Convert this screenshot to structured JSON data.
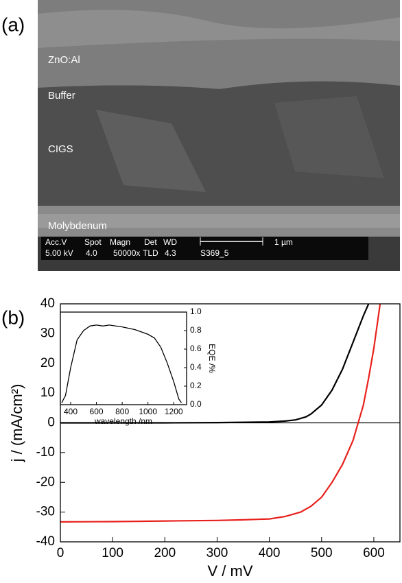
{
  "panel_a": {
    "label": "(a)",
    "layers": [
      "ZnO:Al",
      "Buffer",
      "CIGS",
      "Molybdenum"
    ],
    "info_header": [
      "Acc.V",
      "Spot",
      "Magn",
      "Det",
      "WD"
    ],
    "scale_bar": "1 µm",
    "info_values": [
      "5.00 kV",
      "4.0",
      "50000x",
      "TLD",
      "4.3",
      "S369_5"
    ]
  },
  "chart_data": [
    {
      "type": "line",
      "panel_label": "(b)",
      "xlabel": "V / mV",
      "ylabel": "j / (mA/cm²)",
      "xlim": [
        0,
        650
      ],
      "ylim": [
        -40,
        40
      ],
      "xticks": [
        0,
        100,
        200,
        300,
        400,
        500,
        600
      ],
      "yticks": [
        -40,
        -30,
        -20,
        -10,
        0,
        10,
        20,
        30,
        40
      ],
      "zero_line": true,
      "series": [
        {
          "color": "#000000",
          "x": [
            0,
            100,
            200,
            300,
            400,
            430,
            450,
            470,
            480,
            500,
            520,
            540,
            560,
            580,
            590
          ],
          "values": [
            0,
            0,
            0,
            0.1,
            0.3,
            0.6,
            1,
            2,
            3,
            6,
            11,
            18,
            27,
            36,
            40
          ]
        },
        {
          "color": "#e8201c",
          "x": [
            0,
            100,
            200,
            300,
            350,
            400,
            430,
            460,
            480,
            500,
            520,
            540,
            560,
            570,
            580,
            590,
            600,
            612
          ],
          "values": [
            -33.3,
            -33.2,
            -33,
            -32.8,
            -32.6,
            -32.3,
            -31.5,
            -30,
            -28,
            -25,
            -20,
            -14,
            -6,
            0,
            6,
            15,
            25,
            40
          ]
        }
      ]
    },
    {
      "type": "line",
      "xlabel": "wavelength /nm",
      "ylabel": "EQE /%",
      "y_axis_side": "right",
      "xlim": [
        320,
        1300
      ],
      "ylim": [
        0,
        1.0
      ],
      "xticks": [
        400,
        600,
        800,
        1000,
        1200
      ],
      "yticks": [
        {
          "value": 0,
          "label": "0.0"
        },
        0.2,
        0.4,
        0.6,
        0.8,
        {
          "value": 1.0,
          "label": "1.0"
        }
      ],
      "series": [
        {
          "color": "#000000",
          "x": [
            330,
            360,
            400,
            450,
            500,
            550,
            600,
            650,
            700,
            800,
            900,
            1000,
            1050,
            1100,
            1150,
            1200,
            1240,
            1260
          ],
          "values": [
            0.02,
            0.1,
            0.4,
            0.7,
            0.8,
            0.85,
            0.86,
            0.85,
            0.86,
            0.84,
            0.81,
            0.76,
            0.72,
            0.62,
            0.45,
            0.25,
            0.06,
            0.02
          ]
        }
      ]
    }
  ]
}
